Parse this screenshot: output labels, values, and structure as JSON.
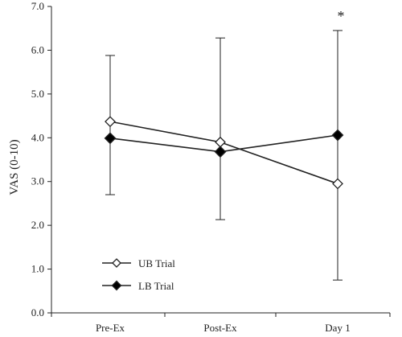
{
  "chart_data": {
    "type": "line",
    "title": "",
    "xlabel": "",
    "ylabel": "VAS (0-10)",
    "categories": [
      "Pre-Ex",
      "Post-Ex",
      "Day 1"
    ],
    "ylim": [
      0,
      7
    ],
    "yticks": [
      "0.0",
      "1.0",
      "2.0",
      "3.0",
      "4.0",
      "5.0",
      "6.0",
      "7.0"
    ],
    "grid": false,
    "legend_position": "lower-left",
    "series": [
      {
        "name": "UB Trial",
        "marker": "open-diamond",
        "values": [
          4.37,
          3.9,
          2.95
        ],
        "error_upper": [
          5.88,
          6.28,
          6.45
        ],
        "error_lower": [
          2.7,
          2.13,
          0.75
        ]
      },
      {
        "name": "LB Trial",
        "marker": "filled-diamond",
        "values": [
          3.99,
          3.68,
          4.06
        ],
        "error_upper": [
          5.88,
          6.28,
          6.45
        ],
        "error_lower": [
          2.7,
          2.13,
          0.75
        ]
      }
    ],
    "annotations": [
      {
        "text": "*",
        "category": "Day 1"
      }
    ],
    "colors": {
      "line": "#222222",
      "marker_fill": "#000000",
      "marker_open": "#ffffff"
    }
  }
}
